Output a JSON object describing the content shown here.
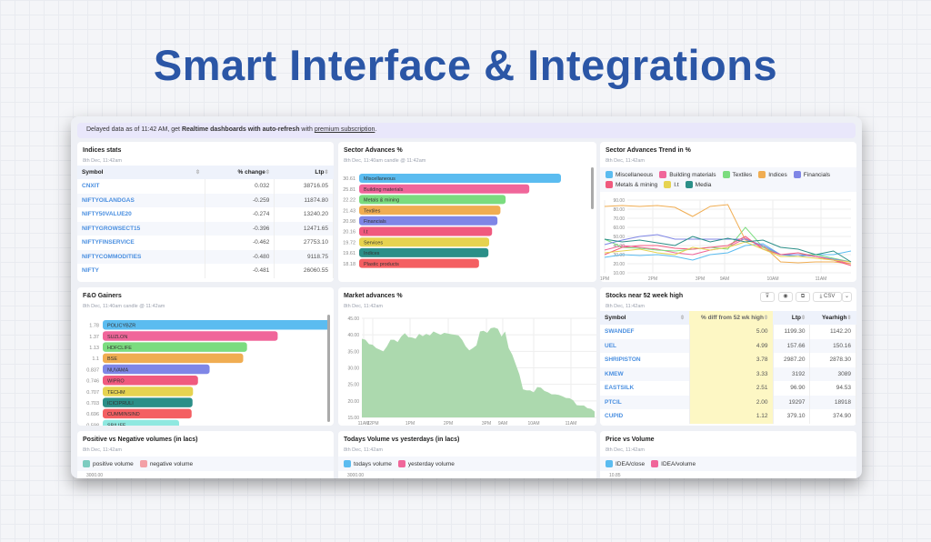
{
  "hero_title": "Smart Interface & Integrations",
  "banner": {
    "prefix": "Delayed data as of 11:42 AM, get ",
    "bold": "Realtime dashboards with auto-refresh",
    "mid": " with ",
    "link": "premium subscription",
    "suffix": "."
  },
  "indices": {
    "title": "Indices stats",
    "subtitle": "8th Dec, 11:42am",
    "columns": [
      "Symbol",
      "% change",
      "Ltp"
    ],
    "rows": [
      [
        "CNXIT",
        "0.032",
        "38716.05"
      ],
      [
        "NIFTYOILANDGAS",
        "-0.259",
        "11874.80"
      ],
      [
        "NIFTY50VALUE20",
        "-0.274",
        "13240.20"
      ],
      [
        "NIFTYGROWSECT15",
        "-0.396",
        "12471.65"
      ],
      [
        "NIFTYFINSERVICE",
        "-0.462",
        "27753.10"
      ],
      [
        "NIFTYCOMMODITIES",
        "-0.480",
        "9118.75"
      ],
      [
        "NIFTY",
        "-0.481",
        "26060.55"
      ]
    ]
  },
  "sector": {
    "title": "Sector Advances %",
    "subtitle": "8th Dec, 11:40am candle @ 11:42am"
  },
  "trend": {
    "title": "Sector Advances Trend in %",
    "subtitle": "8th Dec, 11:42am"
  },
  "fno": {
    "title": "F&O Gainers",
    "subtitle": "8th Dec, 11:40am candle @ 11:42am"
  },
  "market": {
    "title": "Market advances %",
    "subtitle": "8th Dec, 11:42am"
  },
  "stocks": {
    "title": "Stocks near 52 week high",
    "subtitle": "8th Dec, 11:42am",
    "csv_label": "CSV",
    "icons": [
      "filter-icon",
      "eye-icon",
      "copy-icon",
      "download-icon",
      "chevron-down-icon"
    ],
    "columns": [
      "Symbol",
      "% diff from 52 wk high",
      "Ltp",
      "Yearhigh"
    ],
    "rows": [
      [
        "SWANDEF",
        "5.00",
        "1199.30",
        "1142.20"
      ],
      [
        "UEL",
        "4.99",
        "157.66",
        "150.16"
      ],
      [
        "SHRIPISTON",
        "3.78",
        "2987.20",
        "2878.30"
      ],
      [
        "KMEW",
        "3.33",
        "3192",
        "3089"
      ],
      [
        "EASTSILK",
        "2.51",
        "96.90",
        "94.53"
      ],
      [
        "PTCIL",
        "2.00",
        "19297",
        "18918"
      ],
      [
        "CUPID",
        "1.12",
        "379.10",
        "374.90"
      ]
    ],
    "highlight_color": "#fdf7c4"
  },
  "bottom": [
    {
      "title": "Positive vs Negative volumes (in lacs)",
      "subtitle": "8th Dec, 11:42am",
      "legend": [
        {
          "name": "positive volume",
          "color": "#7dccc0"
        },
        {
          "name": "negative volume",
          "color": "#f3a0a6"
        }
      ],
      "top_tick": "3000.00"
    },
    {
      "title": "Todays Volume vs yesterdays (in lacs)",
      "subtitle": "8th Dec, 11:42am",
      "legend": [
        {
          "name": "todays volume",
          "color": "#5bbcf0"
        },
        {
          "name": "yesterday volume",
          "color": "#f0669a"
        }
      ],
      "top_tick": "3000.00"
    },
    {
      "title": "Price vs Volume",
      "subtitle": "8th Dec, 11:42am",
      "legend": [
        {
          "name": "IDEA/close",
          "color": "#5bbcf0"
        },
        {
          "name": "IDEA/volume",
          "color": "#f0669a"
        }
      ],
      "top_tick": "10.85"
    }
  ],
  "chart_data": [
    {
      "type": "bar",
      "orientation": "horizontal",
      "name": "sector",
      "categories": [
        "Miscellaneous",
        "Building materials",
        "Metals & mining",
        "Textiles",
        "Financials",
        "I.t",
        "Services",
        "Indices",
        "Plastic products"
      ],
      "values": [
        30.61,
        25.81,
        22.22,
        21.43,
        20.98,
        20.16,
        19.72,
        19.61,
        18.18
      ],
      "colors": [
        "#5bbcf0",
        "#f0669a",
        "#7bdc7f",
        "#f0ad52",
        "#7f86e6",
        "#f05a7e",
        "#e6d350",
        "#2b8f88",
        "#f45f62"
      ]
    },
    {
      "type": "bar",
      "orientation": "horizontal",
      "name": "fno",
      "categories": [
        "POLICYBZR",
        "SUZLON",
        "HDFCLIFE",
        "BSE",
        "NUVAMA",
        "WIPRO",
        "TECHM",
        "ICICIPRULI",
        "CUMMINSIND",
        "SBILIFE"
      ],
      "values": [
        1.78,
        1.37,
        1.13,
        1.1,
        0.837,
        0.746,
        0.707,
        0.703,
        0.696,
        0.598
      ],
      "colors": [
        "#5bbcf0",
        "#f0669a",
        "#7bdc7f",
        "#f0ad52",
        "#7f86e6",
        "#f05a7e",
        "#e6d350",
        "#2b8f88",
        "#f45f62",
        "#8fe8e0"
      ]
    },
    {
      "type": "line",
      "name": "trend",
      "x_labels": [
        "1PM",
        "2PM",
        "3PM",
        "9AM",
        "10AM",
        "11AM"
      ],
      "ylim": [
        10,
        90
      ],
      "y_ticks": [
        "90.00",
        "80.00",
        "70.00",
        "60.00",
        "50.00",
        "40.00",
        "30.00",
        "20.00",
        "10.00"
      ],
      "series": [
        {
          "name": "Miscellaneous",
          "color": "#5bbcf0",
          "values": [
            27,
            30,
            29,
            30,
            28,
            24,
            30,
            32,
            40,
            42,
            30,
            28,
            30,
            30,
            34
          ]
        },
        {
          "name": "Building materials",
          "color": "#f0669a",
          "values": [
            35,
            40,
            38,
            36,
            32,
            30,
            35,
            38,
            48,
            38,
            30,
            30,
            28,
            24,
            20
          ]
        },
        {
          "name": "Textiles",
          "color": "#7bdc7f",
          "values": [
            47,
            38,
            37,
            35,
            34,
            36,
            38,
            36,
            60,
            38,
            30,
            30,
            30,
            26,
            22
          ]
        },
        {
          "name": "Indices",
          "color": "#f0ad52",
          "values": [
            83,
            84,
            83,
            84,
            82,
            72,
            83,
            85,
            46,
            40,
            22,
            21,
            22,
            22,
            20
          ]
        },
        {
          "name": "Financials",
          "color": "#7f86e6",
          "values": [
            41,
            46,
            50,
            52,
            47,
            47,
            47,
            47,
            47,
            40,
            30,
            30,
            28,
            25,
            22
          ]
        },
        {
          "name": "Metals & mining",
          "color": "#f05a7e",
          "values": [
            30,
            38,
            40,
            40,
            37,
            36,
            38,
            40,
            50,
            36,
            30,
            32,
            28,
            24,
            18
          ]
        },
        {
          "name": "I.t",
          "color": "#e6d350",
          "values": [
            32,
            34,
            36,
            32,
            30,
            38,
            35,
            38,
            44,
            36,
            28,
            28,
            26,
            24,
            22
          ]
        },
        {
          "name": "Media",
          "color": "#2b8f88",
          "values": [
            47,
            44,
            46,
            43,
            40,
            50,
            44,
            48,
            44,
            46,
            38,
            36,
            30,
            34,
            22
          ]
        }
      ]
    },
    {
      "type": "area",
      "name": "market",
      "x_labels": [
        "11AM",
        "12PM",
        "1PM",
        "2PM",
        "3PM",
        "9AM",
        "10AM",
        "11AM"
      ],
      "ylim": [
        15,
        45
      ],
      "y_ticks": [
        "45.00",
        "40.00",
        "35.00",
        "30.00",
        "25.00",
        "20.00",
        "15.00"
      ],
      "color": "#acd9ae",
      "values": [
        38.8,
        38.5,
        37.2,
        37,
        36,
        35.5,
        35,
        36.5,
        38.5,
        38.5,
        37.8,
        39.5,
        40.5,
        39.3,
        39.2,
        38.8,
        40.3,
        39.6,
        40.3,
        39.8,
        41,
        40.5,
        40,
        40.6,
        40.4,
        40.2,
        40,
        39.8,
        38.5,
        36.5,
        35.3,
        36,
        36.8,
        41,
        41.2,
        40.6,
        42,
        42.2,
        41.8,
        39.5,
        41,
        36,
        34,
        31,
        28,
        23.5,
        23.2,
        23.2,
        22.6,
        24.2,
        24,
        23,
        22.6,
        22,
        22,
        21.8,
        21.4,
        20.9,
        20.8,
        20.2,
        18.7,
        18.6,
        18.6,
        17.8,
        17.6,
        16.8
      ]
    }
  ]
}
